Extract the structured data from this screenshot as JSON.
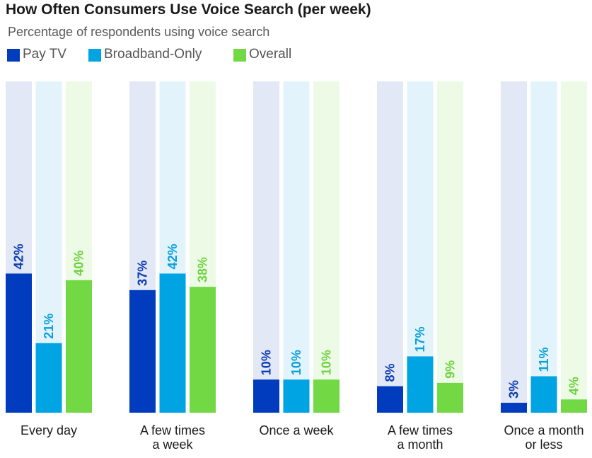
{
  "chart_data": {
    "type": "bar",
    "title": "How Often Consumers Use Voice Search (per week)",
    "subtitle": "Percentage of respondents using voice search",
    "categories": [
      [
        "Every day"
      ],
      [
        "A few times",
        "a week"
      ],
      [
        "Once a week"
      ],
      [
        "A few times",
        "a month"
      ],
      [
        "Once a month",
        "or less"
      ]
    ],
    "series": [
      {
        "name": "Pay TV",
        "values": [
          42,
          37,
          10,
          8,
          3
        ],
        "labels": [
          "42%",
          "37%",
          "10%",
          "8%",
          "3%"
        ],
        "color": "#003cbd",
        "track_color": "#e3e8f6",
        "label_color": "#0a3cb4"
      },
      {
        "name": "Broadband-Only",
        "values": [
          21,
          42,
          10,
          17,
          11
        ],
        "labels": [
          "21%",
          "42%",
          "10%",
          "17%",
          "11%"
        ],
        "color": "#00a4e2",
        "track_color": "#e3f3fb",
        "label_color": "#0aa0dc"
      },
      {
        "name": "Overall",
        "values": [
          40,
          38,
          10,
          9,
          4
        ],
        "labels": [
          "40%",
          "38%",
          "10%",
          "9%",
          "4%"
        ],
        "color": "#72d844",
        "track_color": "#edfae6",
        "label_color": "#6ed240"
      }
    ],
    "ylim": [
      0,
      100
    ],
    "xlabel": "",
    "ylabel": ""
  }
}
